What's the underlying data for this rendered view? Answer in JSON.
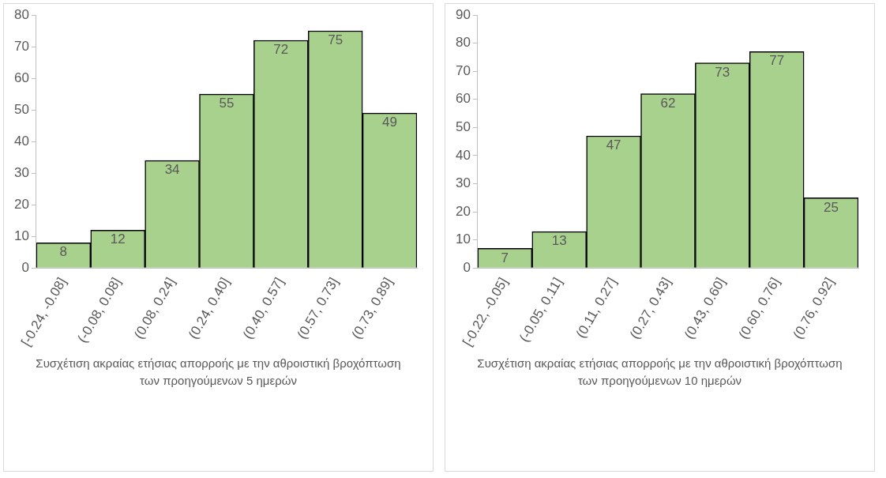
{
  "chart_data": [
    {
      "type": "bar",
      "xlabel": "Συσχέτιση ακραίας ετήσιας απορροής με την αθροιστική βροχόπτωση των προηγούμενων 5 ημερών",
      "categories": [
        "[-0.24, -0.08]",
        "(-0.08, 0.08]",
        "(0.08, 0.24]",
        "(0.24, 0.40]",
        "(0.40, 0.57]",
        "(0.57, 0.73]",
        "(0.73, 0.89]"
      ],
      "values": [
        8,
        12,
        34,
        55,
        72,
        75,
        49
      ],
      "color": "#a9d18e",
      "ylim": [
        0,
        80
      ],
      "yticks": [
        0,
        10,
        20,
        30,
        40,
        50,
        60,
        70,
        80
      ],
      "grid": false,
      "data_labels": true
    },
    {
      "type": "bar",
      "xlabel": "Συσχέτιση ακραίας ετήσιας απορροής με την αθροιστική βροχόπτωση των προηγούμενων 10 ημερών",
      "categories": [
        "[-0.22, -0.05]",
        "(-0.05, 0.11]",
        "(0.11, 0.27]",
        "(0.27, 0.43]",
        "(0.43, 0.60]",
        "(0.60, 0.76]",
        "(0.76, 0.92]"
      ],
      "values": [
        7,
        13,
        47,
        62,
        73,
        77,
        25
      ],
      "color": "#a9d18e",
      "ylim": [
        0,
        90
      ],
      "yticks": [
        0,
        10,
        20,
        30,
        40,
        50,
        60,
        70,
        80,
        90
      ],
      "grid": false,
      "data_labels": true
    }
  ]
}
